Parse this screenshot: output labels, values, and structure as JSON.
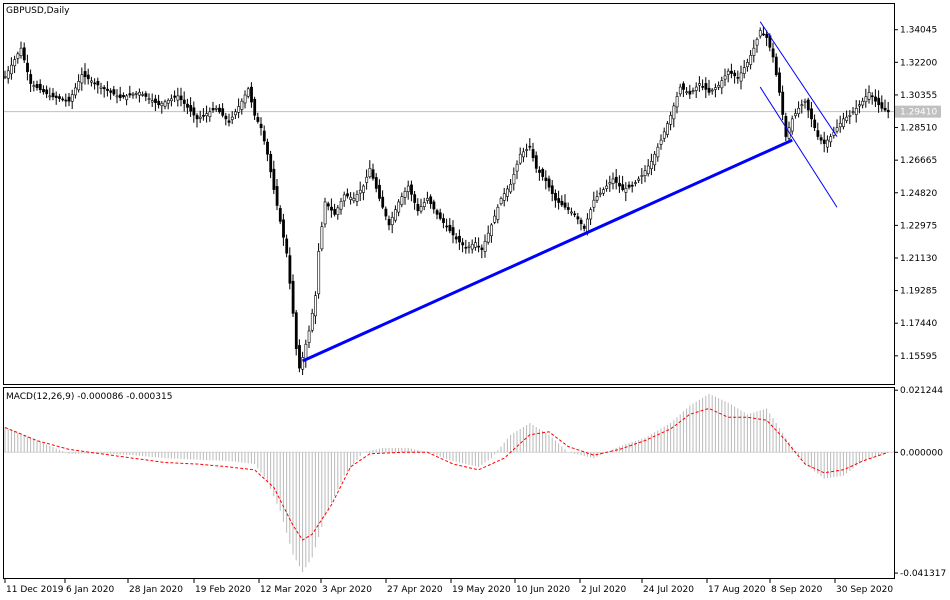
{
  "chart_data": [
    {
      "type": "candlestick",
      "title": "GBPUSD,Daily",
      "symbol": "GBPUSD",
      "timeframe": "Daily",
      "ylim": [
        1.14,
        1.355
      ],
      "y_ticks": [
        "1.34045",
        "1.32200",
        "1.30355",
        "1.28510",
        "1.26665",
        "1.24820",
        "1.22975",
        "1.21130",
        "1.19285",
        "1.17440",
        "1.15595"
      ],
      "current_price": "1.29410",
      "x_tick_labels": [
        "11 Dec 2019",
        "6 Jan 2020",
        "28 Jan 2020",
        "19 Feb 2020",
        "12 Mar 2020",
        "3 Apr 2020",
        "27 Apr 2020",
        "19 May 2020",
        "10 Jun 2020",
        "2 Jul 2020",
        "24 Jul 2020",
        "17 Aug 2020",
        "8 Sep 2020",
        "30 Sep 2020"
      ],
      "close_path": [
        [
          0,
          1.314
        ],
        [
          5,
          1.33
        ],
        [
          8,
          1.31
        ],
        [
          14,
          1.303
        ],
        [
          20,
          1.3
        ],
        [
          24,
          1.315
        ],
        [
          30,
          1.308
        ],
        [
          36,
          1.302
        ],
        [
          42,
          1.305
        ],
        [
          48,
          1.298
        ],
        [
          54,
          1.303
        ],
        [
          60,
          1.29
        ],
        [
          66,
          1.296
        ],
        [
          70,
          1.288
        ],
        [
          74,
          1.3
        ],
        [
          76,
          1.307
        ],
        [
          78,
          1.292
        ],
        [
          80,
          1.285
        ],
        [
          82,
          1.27
        ],
        [
          84,
          1.25
        ],
        [
          86,
          1.232
        ],
        [
          88,
          1.214
        ],
        [
          90,
          1.18
        ],
        [
          91,
          1.16
        ],
        [
          92,
          1.149
        ],
        [
          93,
          1.155
        ],
        [
          95,
          1.17
        ],
        [
          97,
          1.19
        ],
        [
          98,
          1.215
        ],
        [
          100,
          1.243
        ],
        [
          103,
          1.236
        ],
        [
          106,
          1.247
        ],
        [
          109,
          1.245
        ],
        [
          112,
          1.252
        ],
        [
          114,
          1.262
        ],
        [
          117,
          1.245
        ],
        [
          120,
          1.23
        ],
        [
          123,
          1.243
        ],
        [
          126,
          1.252
        ],
        [
          129,
          1.238
        ],
        [
          132,
          1.245
        ],
        [
          135,
          1.236
        ],
        [
          138,
          1.229
        ],
        [
          141,
          1.222
        ],
        [
          144,
          1.217
        ],
        [
          147,
          1.22
        ],
        [
          149,
          1.216
        ],
        [
          152,
          1.23
        ],
        [
          155,
          1.245
        ],
        [
          158,
          1.253
        ],
        [
          161,
          1.27
        ],
        [
          164,
          1.274
        ],
        [
          166,
          1.262
        ],
        [
          169,
          1.255
        ],
        [
          172,
          1.244
        ],
        [
          175,
          1.24
        ],
        [
          178,
          1.236
        ],
        [
          181,
          1.228
        ],
        [
          184,
          1.244
        ],
        [
          187,
          1.25
        ],
        [
          190,
          1.256
        ],
        [
          193,
          1.25
        ],
        [
          196,
          1.252
        ],
        [
          199,
          1.258
        ],
        [
          202,
          1.266
        ],
        [
          205,
          1.278
        ],
        [
          208,
          1.292
        ],
        [
          211,
          1.308
        ],
        [
          214,
          1.304
        ],
        [
          217,
          1.31
        ],
        [
          220,
          1.305
        ],
        [
          223,
          1.309
        ],
        [
          226,
          1.317
        ],
        [
          229,
          1.313
        ],
        [
          232,
          1.322
        ],
        [
          234,
          1.33
        ],
        [
          236,
          1.34
        ],
        [
          238,
          1.336
        ],
        [
          240,
          1.325
        ],
        [
          242,
          1.305
        ],
        [
          244,
          1.28
        ],
        [
          246,
          1.29
        ],
        [
          248,
          1.296
        ],
        [
          250,
          1.3
        ],
        [
          252,
          1.29
        ],
        [
          254,
          1.28
        ],
        [
          256,
          1.276
        ],
        [
          258,
          1.28
        ],
        [
          260,
          1.285
        ],
        [
          262,
          1.29
        ],
        [
          264,
          1.292
        ],
        [
          266,
          1.296
        ],
        [
          268,
          1.3
        ],
        [
          270,
          1.305
        ],
        [
          272,
          1.3
        ],
        [
          274,
          1.296
        ],
        [
          276,
          1.294
        ]
      ],
      "drawn_objects": [
        {
          "type": "trendline",
          "color": "#0000ff",
          "from": {
            "t": 93,
            "price": 1.153
          },
          "to": {
            "t": 246,
            "price": 1.278
          }
        },
        {
          "type": "channel",
          "color": "#0000ff",
          "upper": {
            "from": {
              "t": 236,
              "price": 1.345
            },
            "to": {
              "t": 260,
              "price": 1.28
            }
          },
          "lower": {
            "from": {
              "t": 236,
              "price": 1.308
            },
            "to": {
              "t": 260,
              "price": 1.24
            }
          }
        }
      ]
    },
    {
      "type": "bar+line",
      "indicator": "MACD",
      "title": "MACD(12,26,9) -0.000086 -0.000315",
      "ylim": [
        -0.043,
        0.022
      ],
      "y_ticks": [
        "0.021244",
        "0.000000",
        "-0.041317"
      ],
      "histogram_path": [
        [
          0,
          0.0085
        ],
        [
          10,
          0.004
        ],
        [
          20,
          -0.0005
        ],
        [
          30,
          -0.0003
        ],
        [
          40,
          -0.001
        ],
        [
          50,
          -0.002
        ],
        [
          60,
          -0.0025
        ],
        [
          70,
          -0.003
        ],
        [
          78,
          -0.004
        ],
        [
          82,
          -0.01
        ],
        [
          86,
          -0.02
        ],
        [
          90,
          -0.035
        ],
        [
          93,
          -0.041
        ],
        [
          96,
          -0.036
        ],
        [
          100,
          -0.022
        ],
        [
          106,
          -0.008
        ],
        [
          112,
          0.0
        ],
        [
          118,
          0.0015
        ],
        [
          126,
          0.0015
        ],
        [
          132,
          0.0
        ],
        [
          140,
          -0.003
        ],
        [
          148,
          -0.005
        ],
        [
          152,
          -0.002
        ],
        [
          158,
          0.006
        ],
        [
          164,
          0.01
        ],
        [
          170,
          0.006
        ],
        [
          176,
          0.0
        ],
        [
          184,
          -0.002
        ],
        [
          192,
          0.002
        ],
        [
          200,
          0.005
        ],
        [
          208,
          0.01
        ],
        [
          214,
          0.016
        ],
        [
          220,
          0.02
        ],
        [
          226,
          0.017
        ],
        [
          232,
          0.013
        ],
        [
          238,
          0.015
        ],
        [
          244,
          0.005
        ],
        [
          250,
          -0.004
        ],
        [
          256,
          -0.009
        ],
        [
          262,
          -0.008
        ],
        [
          268,
          -0.003
        ],
        [
          276,
          0.0
        ]
      ],
      "signal_path": [
        [
          0,
          0.0085
        ],
        [
          10,
          0.004
        ],
        [
          20,
          0.001
        ],
        [
          30,
          -0.0005
        ],
        [
          40,
          -0.002
        ],
        [
          50,
          -0.0035
        ],
        [
          60,
          -0.004
        ],
        [
          70,
          -0.005
        ],
        [
          78,
          -0.006
        ],
        [
          84,
          -0.012
        ],
        [
          90,
          -0.025
        ],
        [
          93,
          -0.03
        ],
        [
          96,
          -0.028
        ],
        [
          102,
          -0.018
        ],
        [
          108,
          -0.005
        ],
        [
          114,
          -0.0005
        ],
        [
          124,
          0.0
        ],
        [
          132,
          0.0
        ],
        [
          140,
          -0.004
        ],
        [
          148,
          -0.006
        ],
        [
          156,
          -0.002
        ],
        [
          164,
          0.006
        ],
        [
          170,
          0.007
        ],
        [
          176,
          0.002
        ],
        [
          184,
          -0.001
        ],
        [
          192,
          0.001
        ],
        [
          200,
          0.004
        ],
        [
          208,
          0.008
        ],
        [
          214,
          0.013
        ],
        [
          220,
          0.015
        ],
        [
          226,
          0.012
        ],
        [
          232,
          0.012
        ],
        [
          238,
          0.011
        ],
        [
          244,
          0.004
        ],
        [
          250,
          -0.004
        ],
        [
          256,
          -0.007
        ],
        [
          262,
          -0.006
        ],
        [
          268,
          -0.003
        ],
        [
          276,
          0.0
        ]
      ]
    }
  ]
}
